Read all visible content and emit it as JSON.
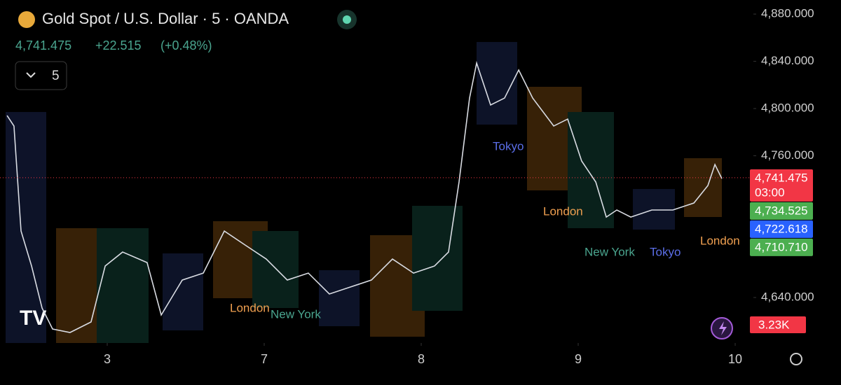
{
  "header": {
    "title": "Gold Spot / U.S. Dollar · 5 · OANDA",
    "price": "4,741.475",
    "change": "+22.515",
    "change_pct": "(+0.48%)",
    "interval": "5"
  },
  "chart_data": {
    "type": "line",
    "x": [
      0.362,
      0.406,
      0.451,
      0.518,
      0.585,
      0.652,
      0.763,
      0.897,
      0.987,
      1.098,
      1.254,
      1.344,
      1.478,
      1.612,
      1.746,
      1.879,
      2.013,
      2.147,
      2.281,
      2.415,
      2.549,
      2.683,
      2.817,
      2.951,
      3.085,
      3.174,
      3.241,
      3.308,
      3.353,
      3.442,
      3.531,
      3.621,
      3.71,
      3.844,
      3.933,
      4.022,
      4.112,
      4.179,
      4.246,
      4.335,
      4.469,
      4.603,
      4.737,
      4.826,
      4.871,
      4.915
    ],
    "values": [
      4794.1,
      4785.2,
      4696.3,
      4666.7,
      4631.1,
      4613.3,
      4610.4,
      4619.3,
      4666.7,
      4678.5,
      4669.6,
      4625.2,
      4654.8,
      4660.7,
      4696.3,
      4684.4,
      4672.6,
      4654.8,
      4660.7,
      4643.0,
      4648.9,
      4654.8,
      4672.6,
      4660.7,
      4666.7,
      4678.5,
      4737.8,
      4808.9,
      4838.5,
      4803.0,
      4808.9,
      4832.6,
      4808.9,
      4785.2,
      4791.1,
      4755.6,
      4737.8,
      4708.1,
      4714.1,
      4708.1,
      4714.1,
      4714.1,
      4720.0,
      4734.8,
      4752.6,
      4740.7
    ],
    "color": "#d9dce3",
    "xlim": [
      0.317,
      5.116
    ],
    "ylim": [
      4601.5,
      4891.9
    ],
    "xticks": [
      {
        "value": 1,
        "label": "3"
      },
      {
        "value": 2,
        "label": "7"
      },
      {
        "value": 3,
        "label": "8"
      },
      {
        "value": 4,
        "label": "9"
      },
      {
        "value": 5,
        "label": "10"
      }
    ],
    "yticks": [
      {
        "value": 4880,
        "label": "4,880.000"
      },
      {
        "value": 4840,
        "label": "4,840.000"
      },
      {
        "value": 4800,
        "label": "4,800.000"
      },
      {
        "value": 4760,
        "label": "4,760.000"
      },
      {
        "value": 4640,
        "label": "4,640.000"
      }
    ],
    "price_tags": [
      {
        "value": 4741.475,
        "label": "4,741.475",
        "sub": "03:00",
        "color": "#f23645"
      },
      {
        "value": 4734.525,
        "label": "4,734.525",
        "color": "#4caf50"
      },
      {
        "value": 4722.618,
        "label": "4,722.618",
        "color": "#2962ff"
      },
      {
        "value": 4710.71,
        "label": "4,710.710",
        "color": "#4caf50"
      }
    ],
    "volume_tag": "3.23K",
    "annotations": [
      "London",
      "New York",
      "Tokyo",
      "London",
      "New York",
      "Tokyo",
      "London"
    ]
  }
}
